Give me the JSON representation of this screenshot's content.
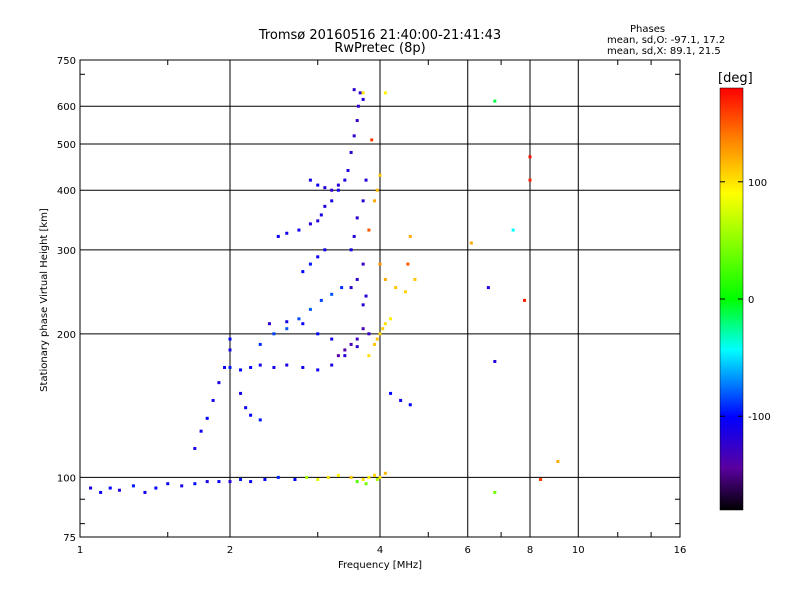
{
  "chart_data": {
    "type": "scatter",
    "title": "Tromsø 20160516 21:40:00-21:41:43",
    "subtitle": "RwPretec (8p)",
    "phases_header": "Phases",
    "phase_stats": [
      "mean, sd,O: -97.1, 17.2",
      "mean, sd,X:  89.1, 21.5"
    ],
    "xlabel": "Frequency [MHz]",
    "ylabel": "Stationary phase Virtual Height [km]",
    "x_scale": "log2",
    "y_scale": "log",
    "xlim": [
      1,
      16
    ],
    "ylim": [
      75,
      750
    ],
    "x_ticks": [
      1,
      2,
      4,
      6,
      8,
      10,
      16
    ],
    "x_tick_labels": [
      "1",
      "2",
      "4",
      "6",
      "8",
      "10",
      "16"
    ],
    "y_ticks": [
      75,
      100,
      200,
      300,
      400,
      500,
      600,
      750
    ],
    "y_tick_labels": [
      "75",
      "100",
      "200",
      "300",
      "400",
      "500",
      "600",
      "750"
    ],
    "grid": true,
    "colorbar": {
      "label": "[deg]",
      "range": [
        -180,
        180
      ],
      "ticks": [
        100,
        0,
        -100
      ],
      "tick_labels": [
        "100",
        "0",
        "-100"
      ],
      "colors": [
        "#ff0000",
        "#ff8000",
        "#ffff00",
        "#00ff00",
        "#00ffff",
        "#0000ff",
        "#5a00a0",
        "#000000"
      ]
    },
    "series": [
      {
        "name": "O",
        "points": [
          [
            1.05,
            95,
            -110
          ],
          [
            1.1,
            93,
            -105
          ],
          [
            1.15,
            95,
            -100
          ],
          [
            1.2,
            94,
            -115
          ],
          [
            1.28,
            96,
            -95
          ],
          [
            1.35,
            93,
            -108
          ],
          [
            1.42,
            95,
            -100
          ],
          [
            1.5,
            97,
            -105
          ],
          [
            1.6,
            96,
            -112
          ],
          [
            1.7,
            97,
            -98
          ],
          [
            1.8,
            98,
            -110
          ],
          [
            1.9,
            98,
            -102
          ],
          [
            2.0,
            98,
            -115
          ],
          [
            2.1,
            99,
            -95
          ],
          [
            2.2,
            98,
            -105
          ],
          [
            2.35,
            99,
            -100
          ],
          [
            2.5,
            100,
            -92
          ],
          [
            2.7,
            99,
            -100
          ],
          [
            1.7,
            115,
            -110
          ],
          [
            1.75,
            125,
            -105
          ],
          [
            1.8,
            133,
            -100
          ],
          [
            1.85,
            145,
            -108
          ],
          [
            1.9,
            158,
            -112
          ],
          [
            1.95,
            170,
            -105
          ],
          [
            2.0,
            185,
            -110
          ],
          [
            2.0,
            195,
            -100
          ],
          [
            2.1,
            150,
            -110
          ],
          [
            2.15,
            140,
            -105
          ],
          [
            2.2,
            135,
            -100
          ],
          [
            2.3,
            132,
            -95
          ],
          [
            2.0,
            170,
            -95
          ],
          [
            2.1,
            168,
            -100
          ],
          [
            2.2,
            170,
            -105
          ],
          [
            2.3,
            172,
            -108
          ],
          [
            2.45,
            170,
            -110
          ],
          [
            2.6,
            172,
            -112
          ],
          [
            2.8,
            170,
            -108
          ],
          [
            3.0,
            168,
            -105
          ],
          [
            3.2,
            172,
            -110
          ],
          [
            3.4,
            180,
            -115
          ],
          [
            3.6,
            188,
            -120
          ],
          [
            3.8,
            200,
            -125
          ],
          [
            2.3,
            190,
            -90
          ],
          [
            2.45,
            200,
            -85
          ],
          [
            2.6,
            205,
            -80
          ],
          [
            2.75,
            215,
            -82
          ],
          [
            2.9,
            225,
            -78
          ],
          [
            3.05,
            235,
            -85
          ],
          [
            3.2,
            242,
            -80
          ],
          [
            3.35,
            250,
            -90
          ],
          [
            2.4,
            210,
            -120
          ],
          [
            2.6,
            212,
            -110
          ],
          [
            2.8,
            210,
            -105
          ],
          [
            3.0,
            200,
            -100
          ],
          [
            3.2,
            195,
            -110
          ],
          [
            2.5,
            320,
            -105
          ],
          [
            2.6,
            325,
            -110
          ],
          [
            2.75,
            330,
            -108
          ],
          [
            2.9,
            340,
            -112
          ],
          [
            3.0,
            345,
            -115
          ],
          [
            3.05,
            355,
            -110
          ],
          [
            2.8,
            270,
            -100
          ],
          [
            2.9,
            280,
            -95
          ],
          [
            3.0,
            290,
            -102
          ],
          [
            3.1,
            300,
            -108
          ],
          [
            3.1,
            370,
            -115
          ],
          [
            3.2,
            380,
            -110
          ],
          [
            3.3,
            400,
            -108
          ],
          [
            3.4,
            420,
            -112
          ],
          [
            3.45,
            440,
            -115
          ],
          [
            2.9,
            420,
            -110
          ],
          [
            3.0,
            410,
            -105
          ],
          [
            3.1,
            405,
            -115
          ],
          [
            3.2,
            400,
            -120
          ],
          [
            3.3,
            410,
            -118
          ],
          [
            3.5,
            480,
            -120
          ],
          [
            3.55,
            520,
            -122
          ],
          [
            3.6,
            560,
            -125
          ],
          [
            3.62,
            600,
            -122
          ],
          [
            3.65,
            640,
            -118
          ],
          [
            3.55,
            650,
            -120
          ],
          [
            3.7,
            620,
            -115
          ],
          [
            3.5,
            300,
            -110
          ],
          [
            3.55,
            320,
            -115
          ],
          [
            3.6,
            350,
            -120
          ],
          [
            3.7,
            380,
            -118
          ],
          [
            3.75,
            420,
            -115
          ],
          [
            3.5,
            250,
            -118
          ],
          [
            3.6,
            260,
            -120
          ],
          [
            3.7,
            280,
            -125
          ],
          [
            3.75,
            240,
            -120
          ],
          [
            3.7,
            230,
            -118
          ],
          [
            3.3,
            180,
            -140
          ],
          [
            3.4,
            185,
            -135
          ],
          [
            3.5,
            190,
            -130
          ],
          [
            3.6,
            195,
            -128
          ],
          [
            3.7,
            205,
            -132
          ],
          [
            4.2,
            150,
            -100
          ],
          [
            4.4,
            145,
            -105
          ],
          [
            4.6,
            142,
            -100
          ],
          [
            6.6,
            250,
            -110
          ],
          [
            6.8,
            175,
            -115
          ],
          [
            7.4,
            330,
            -40
          ]
        ]
      },
      {
        "name": "X",
        "points": [
          [
            2.85,
            100,
            60
          ],
          [
            3.0,
            99,
            80
          ],
          [
            3.15,
            100,
            100
          ],
          [
            3.3,
            101,
            95
          ],
          [
            3.5,
            100,
            110
          ],
          [
            3.7,
            99,
            100
          ],
          [
            3.8,
            100,
            95
          ],
          [
            3.9,
            101,
            105
          ],
          [
            4.0,
            100,
            100
          ],
          [
            4.1,
            102,
            115
          ],
          [
            3.6,
            98,
            30
          ],
          [
            3.75,
            97,
            40
          ],
          [
            3.95,
            99,
            60
          ],
          [
            3.8,
            180,
            100
          ],
          [
            3.9,
            190,
            110
          ],
          [
            4.0,
            200,
            105
          ],
          [
            4.1,
            210,
            100
          ],
          [
            4.2,
            215,
            95
          ],
          [
            4.05,
            205,
            108
          ],
          [
            3.95,
            195,
            112
          ],
          [
            4.0,
            280,
            130
          ],
          [
            4.1,
            260,
            120
          ],
          [
            4.3,
            250,
            110
          ],
          [
            4.5,
            245,
            105
          ],
          [
            4.7,
            260,
            110
          ],
          [
            4.0,
            430,
            110
          ],
          [
            3.95,
            400,
            115
          ],
          [
            3.9,
            380,
            120
          ],
          [
            3.8,
            330,
            150
          ],
          [
            3.85,
            510,
            160
          ],
          [
            3.7,
            640,
            100
          ],
          [
            4.1,
            640,
            95
          ],
          [
            4.55,
            280,
            150
          ],
          [
            4.6,
            320,
            120
          ],
          [
            6.1,
            310,
            120
          ],
          [
            8.0,
            420,
            170
          ],
          [
            8.0,
            470,
            175
          ],
          [
            7.8,
            235,
            170
          ],
          [
            9.1,
            108,
            120
          ],
          [
            8.4,
            99,
            160
          ],
          [
            6.8,
            93,
            40
          ],
          [
            6.8,
            615,
            -10
          ]
        ]
      }
    ]
  }
}
